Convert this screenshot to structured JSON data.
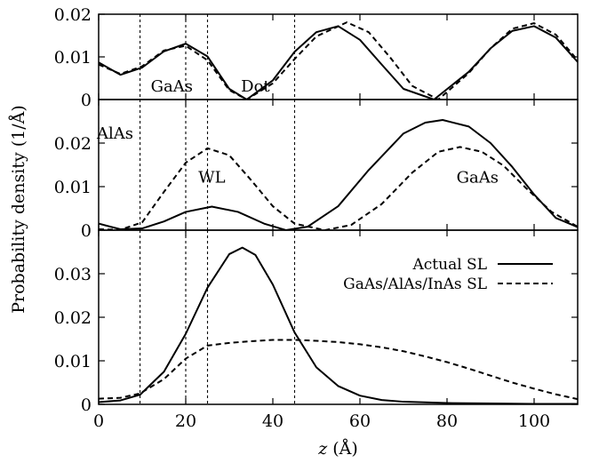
{
  "chart_data": [
    {
      "type": "line",
      "panel": "top",
      "xlim": [
        0,
        110
      ],
      "ylim": [
        0,
        0.02
      ],
      "yticks": [
        "0.02",
        "0.01",
        "0"
      ],
      "boundaries": [
        9.5,
        20,
        25,
        45
      ],
      "annotations": [],
      "series": [
        {
          "name": "Actual SL",
          "style": "solid",
          "x": [
            0,
            5,
            10,
            15,
            20,
            25,
            30,
            34,
            40,
            45,
            50,
            55,
            60,
            65,
            70,
            77,
            85,
            90,
            95,
            100,
            105,
            110
          ],
          "y": [
            0.0087,
            0.0058,
            0.0075,
            0.0113,
            0.0131,
            0.0101,
            0.0025,
            0.0,
            0.0045,
            0.0112,
            0.0158,
            0.0172,
            0.014,
            0.0082,
            0.0025,
            0.0,
            0.0065,
            0.012,
            0.0161,
            0.0172,
            0.0145,
            0.0088
          ]
        },
        {
          "name": "GaAs/AlAs/InAs SL",
          "style": "dashed",
          "x": [
            0,
            5,
            10,
            15,
            20,
            25,
            30,
            34,
            40,
            45,
            50,
            57,
            62,
            67,
            72,
            78,
            85,
            90,
            95,
            100,
            105,
            110
          ],
          "y": [
            0.0082,
            0.006,
            0.0078,
            0.0115,
            0.0126,
            0.0092,
            0.0022,
            0.0,
            0.0038,
            0.0095,
            0.0148,
            0.0181,
            0.0158,
            0.0098,
            0.0032,
            0.0,
            0.0062,
            0.012,
            0.0166,
            0.0179,
            0.0152,
            0.0092
          ]
        }
      ]
    },
    {
      "type": "line",
      "panel": "middle",
      "xlim": [
        0,
        110
      ],
      "ylim": [
        0,
        0.03
      ],
      "yticks": [
        "0.02",
        "0.01",
        "0"
      ],
      "boundaries": [
        9.5,
        20,
        25,
        45
      ],
      "annotations": [
        "AlAs",
        "GaAs",
        "Dot",
        "WL",
        "GaAs"
      ],
      "series": [
        {
          "name": "Actual SL",
          "style": "solid",
          "x": [
            0,
            5,
            10,
            15,
            20,
            26,
            32,
            38,
            43,
            48,
            55,
            62,
            70,
            75,
            79,
            85,
            90,
            95,
            100,
            105,
            110
          ],
          "y": [
            0.0015,
            0.0002,
            0.0004,
            0.002,
            0.0042,
            0.0054,
            0.0042,
            0.0015,
            0.0,
            0.0008,
            0.0055,
            0.0138,
            0.0222,
            0.0247,
            0.0253,
            0.0238,
            0.02,
            0.0145,
            0.0082,
            0.0028,
            0.0007
          ]
        },
        {
          "name": "GaAs/AlAs/InAs SL",
          "style": "dashed",
          "x": [
            0,
            5,
            10,
            15,
            20,
            25,
            30,
            35,
            40,
            45,
            52,
            58,
            65,
            72,
            78,
            83,
            88,
            93,
            98,
            104,
            110
          ],
          "y": [
            0.0002,
            0.0001,
            0.0018,
            0.0088,
            0.0155,
            0.0188,
            0.0172,
            0.0115,
            0.0055,
            0.0015,
            0.0,
            0.0012,
            0.006,
            0.0132,
            0.018,
            0.0191,
            0.018,
            0.0148,
            0.0098,
            0.0042,
            0.0008
          ]
        }
      ]
    },
    {
      "type": "line",
      "panel": "bottom",
      "xlim": [
        0,
        110
      ],
      "ylim": [
        0,
        0.04
      ],
      "yticks": [
        "0.03",
        "0.02",
        "0.01",
        "0"
      ],
      "boundaries": [
        9.5,
        20,
        25,
        45
      ],
      "annotations": [],
      "xticks": [
        "0",
        "20",
        "40",
        "60",
        "80",
        "100"
      ],
      "xlabel": "z (Å)",
      "ylabel": "Probability density (1/Å)",
      "legend": "top-right",
      "series": [
        {
          "name": "Actual SL",
          "style": "solid",
          "x": [
            0,
            5,
            9.5,
            15,
            20,
            25,
            30,
            33,
            36,
            40,
            45,
            50,
            55,
            60,
            65,
            70,
            80,
            90,
            100,
            110
          ],
          "y": [
            0.0005,
            0.0009,
            0.0022,
            0.0075,
            0.0162,
            0.0268,
            0.0345,
            0.036,
            0.0343,
            0.0275,
            0.0165,
            0.0085,
            0.0042,
            0.002,
            0.001,
            0.0006,
            0.0003,
            0.0002,
            0.0001,
            0.0001
          ]
        },
        {
          "name": "GaAs/AlAs/InAs SL",
          "style": "dashed",
          "x": [
            0,
            5,
            9.5,
            15,
            20,
            25,
            30,
            35,
            40,
            45,
            50,
            55,
            60,
            65,
            70,
            75,
            80,
            85,
            90,
            95,
            100,
            105,
            110
          ],
          "y": [
            0.0013,
            0.0015,
            0.0025,
            0.0058,
            0.0105,
            0.0135,
            0.0141,
            0.0145,
            0.0148,
            0.0148,
            0.0146,
            0.0143,
            0.0138,
            0.0131,
            0.0122,
            0.011,
            0.0097,
            0.0082,
            0.0066,
            0.005,
            0.0036,
            0.0023,
            0.0012
          ]
        }
      ]
    }
  ]
}
